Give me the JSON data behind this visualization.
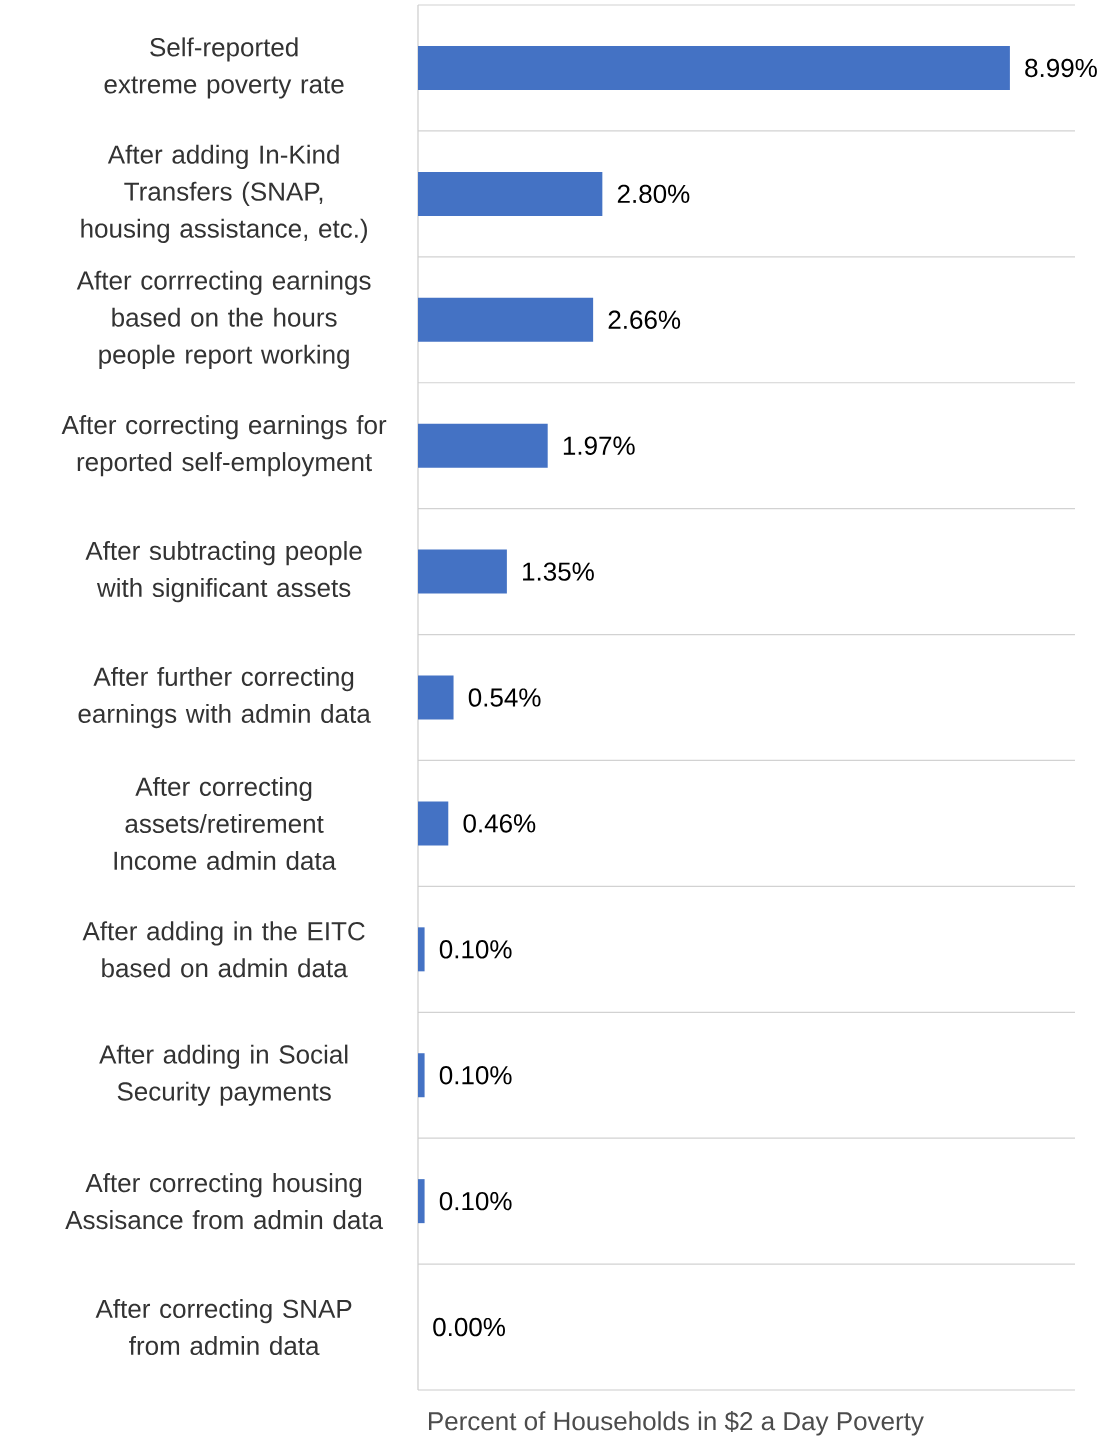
{
  "chart_data": {
    "type": "bar",
    "orientation": "horizontal",
    "xlabel": "Percent of Households in $2 a Day Poverty",
    "categories": [
      "Self-reported extreme poverty rate",
      "After adding In-Kind Transfers (SNAP, housing assistance, etc.)",
      "After corrrecting earnings based on the hours people report working",
      "After correcting earnings for reported self-employment",
      "After subtracting people with significant assets",
      "After further correcting earnings with admin data",
      "After correcting assets/retirement Income admin data",
      "After adding in the EITC based on admin data",
      "After adding in Social Security payments",
      "After correcting housing Assisance from admin data",
      "After correcting SNAP from admin data"
    ],
    "values": [
      8.99,
      2.8,
      2.66,
      1.97,
      1.35,
      0.54,
      0.46,
      0.1,
      0.1,
      0.1,
      0.0
    ],
    "value_labels": [
      "8.99%",
      "2.80%",
      "2.66%",
      "1.97%",
      "1.35%",
      "0.54%",
      "0.46%",
      "0.10%",
      "0.10%",
      "0.10%",
      "0.00%"
    ],
    "color": "#4472c4",
    "grid": "y"
  }
}
